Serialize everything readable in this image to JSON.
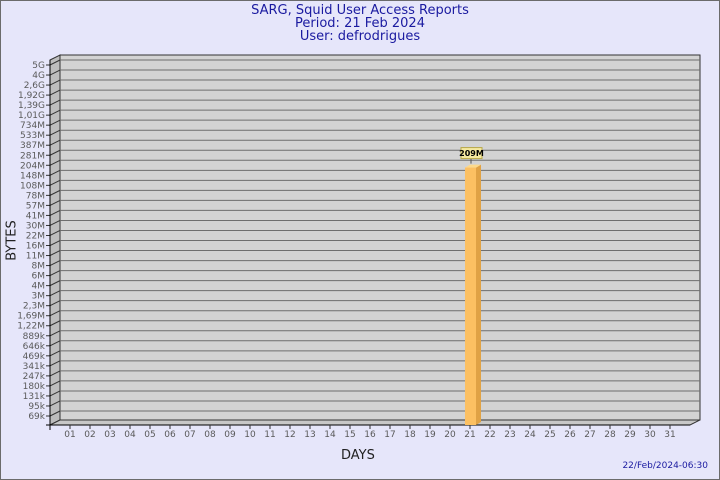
{
  "header": {
    "title": "SARG, Squid User Access Reports",
    "period": "Period: 21 Feb 2024",
    "user": "User: defrodrigues"
  },
  "footer": {
    "timestamp": "22/Feb/2024-06:30"
  },
  "chart_data": {
    "type": "bar",
    "xlabel": "DAYS",
    "ylabel": "BYTES",
    "y_scale": "log",
    "grid": true,
    "y_tick_labels": [
      "5G",
      "4G",
      "2,6G",
      "1,92G",
      "1,39G",
      "1,01G",
      "734M",
      "533M",
      "387M",
      "281M",
      "204M",
      "148M",
      "108M",
      "78M",
      "57M",
      "41M",
      "30M",
      "22M",
      "16M",
      "11M",
      "8M",
      "6M",
      "4M",
      "3M",
      "2,3M",
      "1,69M",
      "1,22M",
      "889k",
      "646k",
      "469k",
      "341k",
      "247k",
      "180k",
      "131k",
      "95k",
      "69k"
    ],
    "categories": [
      "01",
      "02",
      "03",
      "04",
      "05",
      "06",
      "07",
      "08",
      "09",
      "10",
      "11",
      "12",
      "13",
      "14",
      "15",
      "16",
      "17",
      "18",
      "19",
      "20",
      "21",
      "22",
      "23",
      "24",
      "25",
      "26",
      "27",
      "28",
      "29",
      "30",
      "31"
    ],
    "bars": [
      {
        "day": "21",
        "value_label": "209M"
      }
    ],
    "colors": {
      "bar": "#fcc062",
      "bar_side": "#e0a245",
      "wall": "#d3d3d3",
      "background": "#e6e6fa"
    }
  }
}
